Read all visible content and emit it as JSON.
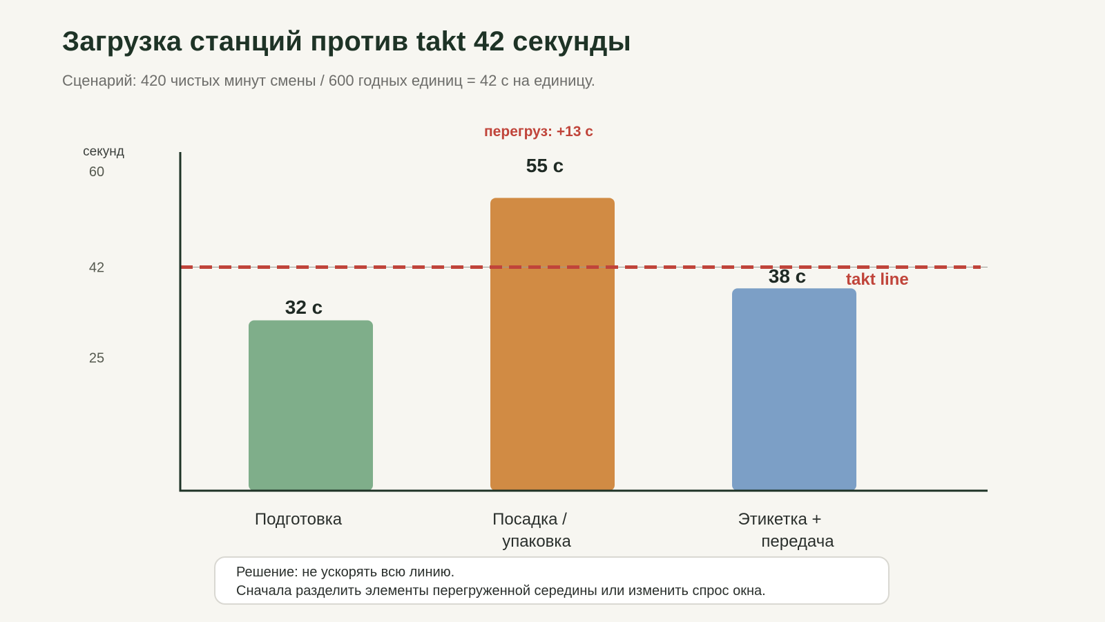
{
  "title": "Загрузка станций против takt 42 секунды",
  "subtitle": "Сценарий: 420 чистых минут смены / 600 годных единиц = 42 с на единицу.",
  "note": {
    "line1": "Решение: не ускорять всю линию.",
    "line2": "Сначала разделить элементы перегруженной середины или изменить спрос окна."
  },
  "colors": {
    "takt": "#c0443a",
    "axis": "#1e3326",
    "bars": [
      "#7fae8a",
      "#d18b44",
      "#7c9fc6"
    ]
  },
  "chart_data": {
    "type": "bar",
    "ylabel": "секунд",
    "ylim": [
      0,
      64
    ],
    "yticks": [
      25,
      42,
      60
    ],
    "categories": [
      [
        "Подготовка"
      ],
      [
        "Посадка /",
        "упаковка"
      ],
      [
        "Этикетка +",
        "передача"
      ]
    ],
    "values": [
      32,
      55,
      38
    ],
    "value_labels": [
      "32 с",
      "55 с",
      "38 с"
    ],
    "takt": {
      "value": 42,
      "label": "takt line"
    },
    "annotation": {
      "bar_index": 1,
      "text": "перегруз: +13 с"
    },
    "grid": false,
    "legend": "none"
  }
}
